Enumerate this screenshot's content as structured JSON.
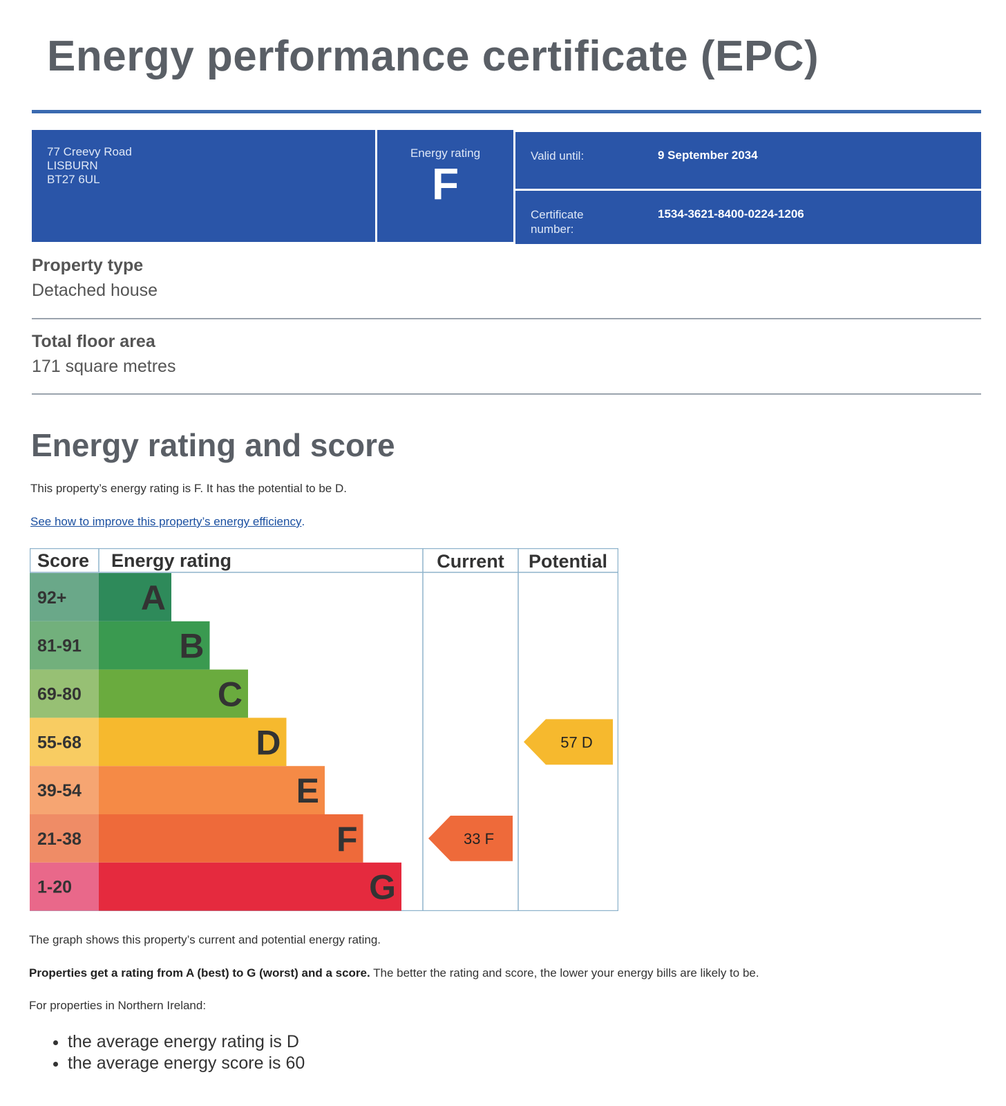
{
  "title": "Energy performance certificate (EPC)",
  "summary": {
    "address": [
      "77 Creevy Road",
      "LISBURN",
      "BT27 6UL"
    ],
    "rating_label": "Energy rating",
    "rating": "F",
    "valid_until_label": "Valid until:",
    "valid_until": "9 September 2034",
    "certificate_label_1": "Certificate",
    "certificate_label_2": "number:",
    "certificate_number": "1534-3621-8400-0224-1206"
  },
  "property_type": {
    "label": "Property type",
    "value": "Detached house"
  },
  "floor_area": {
    "label": "Total floor area",
    "value": "171 square metres"
  },
  "section_heading": "Energy rating and score",
  "rating_sentence": "This property’s energy rating is F. It has the potential to be D.",
  "improve_link": "See how to improve this property’s energy efficiency",
  "improve_link_suffix": ".",
  "chart_data": {
    "type": "table",
    "headers": [
      "Score",
      "Energy rating",
      "Current",
      "Potential"
    ],
    "bands": [
      {
        "score": "92+",
        "letter": "A",
        "color": "#2e8a5a",
        "score_bg": "#6aa889"
      },
      {
        "score": "81-91",
        "letter": "B",
        "color": "#3a9a50",
        "score_bg": "#72b07c"
      },
      {
        "score": "69-80",
        "letter": "C",
        "color": "#6aab3e",
        "score_bg": "#97c074"
      },
      {
        "score": "55-68",
        "letter": "D",
        "color": "#f6b92e",
        "score_bg": "#f8cc62"
      },
      {
        "score": "39-54",
        "letter": "E",
        "color": "#f58a46",
        "score_bg": "#f6a572"
      },
      {
        "score": "21-38",
        "letter": "F",
        "color": "#ee6a3a",
        "score_bg": "#ef8c66"
      },
      {
        "score": "1-20",
        "letter": "G",
        "color": "#e52a3e",
        "score_bg": "#e9688a"
      }
    ],
    "current": {
      "score": 33,
      "letter": "F",
      "label": "33  F",
      "color": "#ee6a3a"
    },
    "potential": {
      "score": 57,
      "letter": "D",
      "label": "57  D",
      "color": "#f6b92e"
    }
  },
  "graph_note": "The graph shows this property’s current and potential energy rating.",
  "rating_note_bold": "Properties get a rating from A (best) to G (worst) and a score.",
  "rating_note_rest": " The better the rating and score, the lower your energy bills are likely to be.",
  "ni_intro": "For properties in Northern Ireland:",
  "averages": [
    "the average energy rating is D",
    "the average energy score is 60"
  ]
}
